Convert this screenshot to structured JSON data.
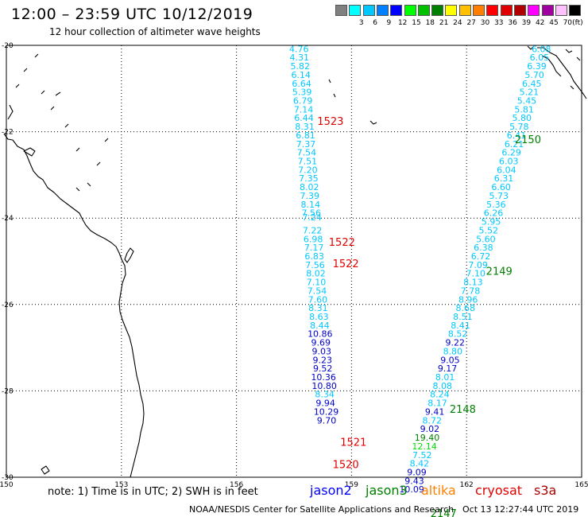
{
  "header": {
    "title": "12:00 – 23:59 UTC 10/12/2019",
    "subtitle": "12 hour collection of altimeter wave heights"
  },
  "legend": {
    "colors": [
      "#808080",
      "#00ffff",
      "#00c8ff",
      "#0080ff",
      "#0000ff",
      "#00ff00",
      "#00c000",
      "#008000",
      "#ffff00",
      "#ffc000",
      "#ff8000",
      "#ff0000",
      "#e00000",
      "#b00000",
      "#ff00ff",
      "#a000a0",
      "#ffc0ff",
      "#000000"
    ],
    "labels": [
      "3",
      "6",
      "9",
      "12",
      "15",
      "18",
      "21",
      "24",
      "27",
      "30",
      "33",
      "36",
      "39",
      "42",
      "45",
      "70"
    ],
    "unit": "(ft)"
  },
  "chart_data": {
    "type": "scatter",
    "title": "12:00 – 23:59 UTC 10/12/2019",
    "subtitle": "12 hour collection of altimeter wave heights",
    "xlim": [
      150,
      165
    ],
    "ylim": [
      -30,
      -20
    ],
    "x_ticks": [
      "150",
      "153",
      "156",
      "159",
      "162",
      "165"
    ],
    "y_ticks": [
      "-20",
      "-22",
      "-24",
      "-26",
      "-28",
      "-30"
    ],
    "grid": true,
    "tracks": [
      {
        "satellite": "cryosat",
        "color": "#e00000",
        "points": [
          {
            "x": 157.63,
            "y": -20.08,
            "v": "4.76",
            "c": "#00c8ff"
          },
          {
            "x": 157.64,
            "y": -20.28,
            "v": "4.31",
            "c": "#00c8ff"
          },
          {
            "x": 157.66,
            "y": -20.48,
            "v": "5.82",
            "c": "#00c8ff"
          },
          {
            "x": 157.68,
            "y": -20.68,
            "v": "6.14",
            "c": "#00c8ff"
          },
          {
            "x": 157.7,
            "y": -20.88,
            "v": "6.64",
            "c": "#00c8ff"
          },
          {
            "x": 157.71,
            "y": -21.08,
            "v": "5.39",
            "c": "#00c8ff"
          },
          {
            "x": 157.73,
            "y": -21.28,
            "v": "6.79",
            "c": "#00c8ff"
          },
          {
            "x": 157.75,
            "y": -21.48,
            "v": "7.14",
            "c": "#00c8ff"
          },
          {
            "x": 157.76,
            "y": -21.68,
            "v": "6.44",
            "c": "#00c8ff"
          },
          {
            "x": 157.78,
            "y": -21.88,
            "v": "8.31",
            "c": "#00c8ff"
          },
          {
            "x": 157.8,
            "y": -22.08,
            "v": "6.81",
            "c": "#00c8ff"
          },
          {
            "x": 157.81,
            "y": -22.28,
            "v": "7.37",
            "c": "#00c8ff"
          },
          {
            "x": 157.83,
            "y": -22.48,
            "v": "7.54",
            "c": "#00c8ff"
          },
          {
            "x": 157.85,
            "y": -22.68,
            "v": "7.51",
            "c": "#00c8ff"
          },
          {
            "x": 157.86,
            "y": -22.88,
            "v": "7.20",
            "c": "#00c8ff"
          },
          {
            "x": 157.88,
            "y": -23.08,
            "v": "7.35",
            "c": "#00c8ff"
          },
          {
            "x": 157.9,
            "y": -23.28,
            "v": "8.02",
            "c": "#00c8ff"
          },
          {
            "x": 157.91,
            "y": -23.48,
            "v": "7.39",
            "c": "#00c8ff"
          },
          {
            "x": 157.93,
            "y": -23.68,
            "v": "8.14",
            "c": "#00c8ff"
          },
          {
            "x": 157.95,
            "y": -23.88,
            "v": "7.56",
            "c": "#00c8ff"
          },
          {
            "x": 157.97,
            "y": -23.98,
            "v": "7.24",
            "c": "#00c8ff"
          },
          {
            "x": 157.98,
            "y": -24.28,
            "v": "7.22",
            "c": "#00c8ff"
          },
          {
            "x": 158.0,
            "y": -24.48,
            "v": "6.98",
            "c": "#00c8ff"
          },
          {
            "x": 158.02,
            "y": -24.68,
            "v": "7.17",
            "c": "#00c8ff"
          },
          {
            "x": 158.03,
            "y": -24.88,
            "v": "6.83",
            "c": "#00c8ff"
          },
          {
            "x": 158.05,
            "y": -25.08,
            "v": "7.56",
            "c": "#00c8ff"
          },
          {
            "x": 158.07,
            "y": -25.28,
            "v": "8.02",
            "c": "#00c8ff"
          },
          {
            "x": 158.08,
            "y": -25.48,
            "v": "7.10",
            "c": "#00c8ff"
          },
          {
            "x": 158.1,
            "y": -25.68,
            "v": "7.54",
            "c": "#00c8ff"
          },
          {
            "x": 158.12,
            "y": -25.88,
            "v": "7.60",
            "c": "#00c8ff"
          },
          {
            "x": 158.13,
            "y": -26.08,
            "v": "8.31",
            "c": "#00c8ff"
          },
          {
            "x": 158.15,
            "y": -26.28,
            "v": "8.63",
            "c": "#00c8ff"
          },
          {
            "x": 158.17,
            "y": -26.48,
            "v": "8.44",
            "c": "#00c8ff"
          },
          {
            "x": 158.18,
            "y": -26.68,
            "v": "10.86",
            "c": "#0000c8"
          },
          {
            "x": 158.2,
            "y": -26.88,
            "v": "9.69",
            "c": "#0000c8"
          },
          {
            "x": 158.22,
            "y": -27.08,
            "v": "9.03",
            "c": "#0000c8"
          },
          {
            "x": 158.24,
            "y": -27.28,
            "v": "9.23",
            "c": "#0000c8"
          },
          {
            "x": 158.25,
            "y": -27.48,
            "v": "9.52",
            "c": "#0000c8"
          },
          {
            "x": 158.27,
            "y": -27.68,
            "v": "10.36",
            "c": "#0000c8"
          },
          {
            "x": 158.29,
            "y": -27.88,
            "v": "10.80",
            "c": "#0000c8"
          },
          {
            "x": 158.3,
            "y": -28.08,
            "v": "8.34",
            "c": "#00c8ff"
          },
          {
            "x": 158.32,
            "y": -28.28,
            "v": "9.94",
            "c": "#0000c8"
          },
          {
            "x": 158.34,
            "y": -28.48,
            "v": "10.29",
            "c": "#0000c8"
          },
          {
            "x": 158.35,
            "y": -28.68,
            "v": "9.70",
            "c": "#0000c8"
          }
        ],
        "times": [
          {
            "x": 158.45,
            "y": -21.75,
            "t": "1523"
          },
          {
            "x": 158.75,
            "y": -24.55,
            "t": "1522"
          },
          {
            "x": 158.85,
            "y": -25.05,
            "t": "1522"
          },
          {
            "x": 159.05,
            "y": -29.18,
            "t": "1521"
          },
          {
            "x": 158.85,
            "y": -29.7,
            "t": "1520"
          }
        ]
      },
      {
        "satellite": "jason3",
        "color": "#008000",
        "points": [
          {
            "x": 163.95,
            "y": -20.08,
            "v": "6.08",
            "c": "#00c8ff"
          },
          {
            "x": 163.9,
            "y": -20.28,
            "v": "6.05",
            "c": "#00c8ff"
          },
          {
            "x": 163.83,
            "y": -20.48,
            "v": "6.39",
            "c": "#00c8ff"
          },
          {
            "x": 163.77,
            "y": -20.68,
            "v": "5.70",
            "c": "#00c8ff"
          },
          {
            "x": 163.7,
            "y": -20.88,
            "v": "6.45",
            "c": "#00c8ff"
          },
          {
            "x": 163.63,
            "y": -21.08,
            "v": "5.21",
            "c": "#00c8ff"
          },
          {
            "x": 163.57,
            "y": -21.28,
            "v": "5.45",
            "c": "#00c8ff"
          },
          {
            "x": 163.5,
            "y": -21.48,
            "v": "5.81",
            "c": "#00c8ff"
          },
          {
            "x": 163.44,
            "y": -21.68,
            "v": "5.80",
            "c": "#00c8ff"
          },
          {
            "x": 163.37,
            "y": -21.88,
            "v": "5.78",
            "c": "#00c8ff"
          },
          {
            "x": 163.3,
            "y": -22.08,
            "v": "6.41",
            "c": "#00c8ff"
          },
          {
            "x": 163.24,
            "y": -22.28,
            "v": "6.21",
            "c": "#00c8ff"
          },
          {
            "x": 163.17,
            "y": -22.48,
            "v": "6.29",
            "c": "#00c8ff"
          },
          {
            "x": 163.1,
            "y": -22.68,
            "v": "6.03",
            "c": "#00c8ff"
          },
          {
            "x": 163.04,
            "y": -22.88,
            "v": "6.04",
            "c": "#00c8ff"
          },
          {
            "x": 162.97,
            "y": -23.08,
            "v": "6.31",
            "c": "#00c8ff"
          },
          {
            "x": 162.9,
            "y": -23.28,
            "v": "6.60",
            "c": "#00c8ff"
          },
          {
            "x": 162.84,
            "y": -23.48,
            "v": "5.73",
            "c": "#00c8ff"
          },
          {
            "x": 162.77,
            "y": -23.68,
            "v": "5.36",
            "c": "#00c8ff"
          },
          {
            "x": 162.7,
            "y": -23.88,
            "v": "6.26",
            "c": "#00c8ff"
          },
          {
            "x": 162.64,
            "y": -24.08,
            "v": "5.95",
            "c": "#00c8ff"
          },
          {
            "x": 162.57,
            "y": -24.28,
            "v": "5.52",
            "c": "#00c8ff"
          },
          {
            "x": 162.5,
            "y": -24.48,
            "v": "5.60",
            "c": "#00c8ff"
          },
          {
            "x": 162.44,
            "y": -24.68,
            "v": "6.38",
            "c": "#00c8ff"
          },
          {
            "x": 162.37,
            "y": -24.88,
            "v": "6.72",
            "c": "#00c8ff"
          },
          {
            "x": 162.3,
            "y": -25.08,
            "v": "7.09",
            "c": "#00c8ff"
          },
          {
            "x": 162.24,
            "y": -25.28,
            "v": "7.10",
            "c": "#00c8ff"
          },
          {
            "x": 162.17,
            "y": -25.48,
            "v": "8.13",
            "c": "#00c8ff"
          },
          {
            "x": 162.1,
            "y": -25.68,
            "v": "7.78",
            "c": "#00c8ff"
          },
          {
            "x": 162.04,
            "y": -25.88,
            "v": "8.96",
            "c": "#00c8ff"
          },
          {
            "x": 161.97,
            "y": -26.08,
            "v": "8.68",
            "c": "#00c8ff"
          },
          {
            "x": 161.9,
            "y": -26.28,
            "v": "8.51",
            "c": "#00c8ff"
          },
          {
            "x": 161.84,
            "y": -26.48,
            "v": "8.41",
            "c": "#00c8ff"
          },
          {
            "x": 161.77,
            "y": -26.68,
            "v": "8.52",
            "c": "#00c8ff"
          },
          {
            "x": 161.7,
            "y": -26.88,
            "v": "9.22",
            "c": "#0000c8"
          },
          {
            "x": 161.64,
            "y": -27.08,
            "v": "8.80",
            "c": "#00c8ff"
          },
          {
            "x": 161.57,
            "y": -27.28,
            "v": "9.05",
            "c": "#0000c8"
          },
          {
            "x": 161.5,
            "y": -27.48,
            "v": "9.17",
            "c": "#0000c8"
          },
          {
            "x": 161.44,
            "y": -27.68,
            "v": "8.01",
            "c": "#00c8ff"
          },
          {
            "x": 161.37,
            "y": -27.88,
            "v": "8.08",
            "c": "#00c8ff"
          },
          {
            "x": 161.3,
            "y": -28.08,
            "v": "8.24",
            "c": "#00c8ff"
          },
          {
            "x": 161.24,
            "y": -28.28,
            "v": "8.17",
            "c": "#00c8ff"
          },
          {
            "x": 161.17,
            "y": -28.48,
            "v": "9.41",
            "c": "#0000c8"
          },
          {
            "x": 161.1,
            "y": -28.68,
            "v": "8.72",
            "c": "#00c8ff"
          },
          {
            "x": 161.04,
            "y": -28.88,
            "v": "9.02",
            "c": "#0000c8"
          },
          {
            "x": 160.97,
            "y": -29.08,
            "v": "19.40",
            "c": "#008000"
          },
          {
            "x": 160.9,
            "y": -29.28,
            "v": "12.14",
            "c": "#00e000"
          },
          {
            "x": 160.84,
            "y": -29.48,
            "v": "7.52",
            "c": "#00c8ff"
          },
          {
            "x": 160.77,
            "y": -29.68,
            "v": "8.42",
            "c": "#00c8ff"
          },
          {
            "x": 160.7,
            "y": -29.88,
            "v": "9.09",
            "c": "#0000c8"
          },
          {
            "x": 160.64,
            "y": -30.08,
            "v": "9.43",
            "c": "#0000c8"
          },
          {
            "x": 160.57,
            "y": -30.28,
            "v": "10.09",
            "c": "#0000c8"
          }
        ],
        "times": [
          {
            "x": 163.6,
            "y": -22.17,
            "t": "2150"
          },
          {
            "x": 162.85,
            "y": -25.22,
            "t": "2149"
          },
          {
            "x": 161.9,
            "y": -28.42,
            "t": "2148"
          },
          {
            "x": 161.4,
            "y": -30.83,
            "t": "2147"
          }
        ]
      }
    ]
  },
  "footer": {
    "note": "note:  1) Time is in UTC;  2) SWH is in feet",
    "satellites": [
      {
        "name": "jason2",
        "color": "#0000ff"
      },
      {
        "name": "jason3",
        "color": "#008000"
      },
      {
        "name": "altika",
        "color": "#ff8000"
      },
      {
        "name": "cryosat",
        "color": "#e00000"
      },
      {
        "name": "s3a",
        "color": "#b00000"
      }
    ],
    "source": "NOAA/NESDIS Center for Satellite Applications and Research",
    "timestamp": "Oct 13 12:27:44 UTC 2019"
  }
}
